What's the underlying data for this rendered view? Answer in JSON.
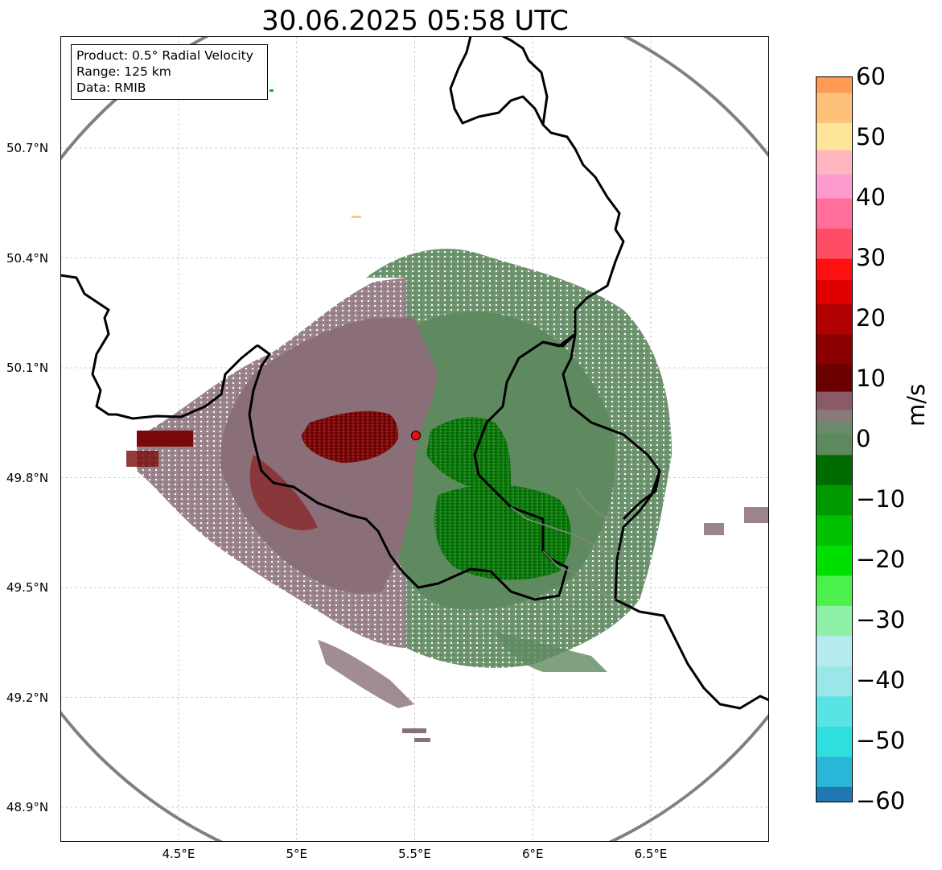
{
  "title": "30.06.2025 05:58 UTC",
  "info_box": {
    "product": "Product: 0.5° Radial Velocity",
    "range": "Range: 125 km",
    "data": "Data: RMIB"
  },
  "map": {
    "lat_labels": [
      {
        "label": "50.7°N",
        "value": 50.7
      },
      {
        "label": "50.4°N",
        "value": 50.4
      },
      {
        "label": "50.1°N",
        "value": 50.1
      },
      {
        "label": "49.8°N",
        "value": 49.8
      },
      {
        "label": "49.5°N",
        "value": 49.5
      },
      {
        "label": "49.2°N",
        "value": 49.2
      },
      {
        "label": "48.9°N",
        "value": 48.9
      }
    ],
    "lon_labels": [
      {
        "label": "4.5°E",
        "value": 4.5
      },
      {
        "label": "5°E",
        "value": 5.0
      },
      {
        "label": "5.5°E",
        "value": 5.5
      },
      {
        "label": "6°E",
        "value": 6.0
      },
      {
        "label": "6.5°E",
        "value": 6.5
      }
    ],
    "lon_range": [
      4.0,
      7.0
    ],
    "lat_range": [
      48.8,
      50.98
    ],
    "radar_site": {
      "lon": 5.505,
      "lat": 49.915
    },
    "range_ring_km": 125,
    "gridlines": true
  },
  "colorbar": {
    "unit": "m/s",
    "range": [
      -60,
      60
    ],
    "ticks": [
      "60",
      "50",
      "40",
      "30",
      "20",
      "10",
      "0",
      "−10",
      "−20",
      "−30",
      "−40",
      "−50",
      "−60"
    ],
    "tick_values": [
      60,
      50,
      40,
      30,
      20,
      10,
      0,
      -10,
      -20,
      -30,
      -40,
      -50,
      -60
    ],
    "colors": {
      "-60": "#1f78b4",
      "-55": "#2ab6d6",
      "-50": "#2fdfdf",
      "-45": "#5ae3e3",
      "-40": "#9be6e8",
      "-35": "#b6ecef",
      "-30": "#8ff0a8",
      "-25": "#4cf04c",
      "-20": "#00e000",
      "-15": "#00c000",
      "-10": "#009a00",
      "-5": "#006b00",
      "0": "#5c8a5c",
      "2": "#6b8a6b",
      "4": "#8a7a7a",
      "6": "#8a5a66",
      "10": "#6b0000",
      "15": "#8a0000",
      "20": "#b00000",
      "25": "#e00000",
      "28": "#ff1010",
      "32": "#ff4d66",
      "38": "#ff6f9a",
      "42": "#ff9ad0",
      "46": "#ffb6c0",
      "50": "#ffe59a",
      "55": "#ffc07a",
      "60": "#ff9a55"
    }
  }
}
